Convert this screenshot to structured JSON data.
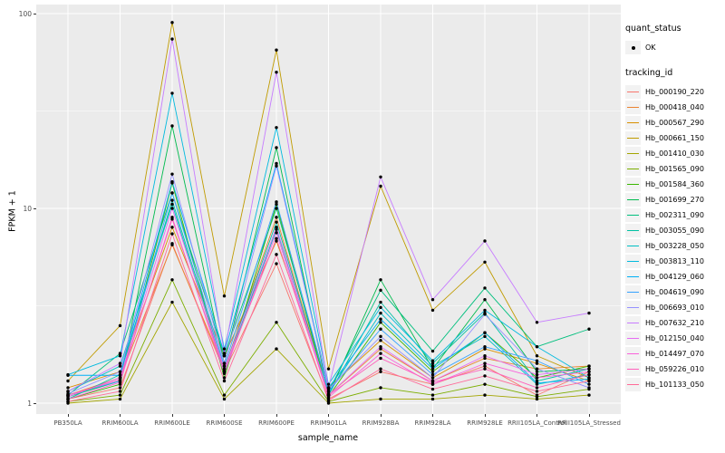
{
  "figure": {
    "legend": {
      "quant_status_title": "quant_status",
      "ok_label": "OK",
      "tracking_id_title": "tracking_id"
    }
  },
  "chart_data": {
    "type": "line",
    "title": "",
    "xlabel": "sample_name",
    "ylabel": "FPKM + 1",
    "yscale": "log",
    "ylim": [
      1,
      100
    ],
    "y_major_ticks": [
      1,
      10,
      100
    ],
    "y_minor_gridlines": [
      3.162,
      31.62
    ],
    "grid": true,
    "legend_position": "right",
    "panel_bg": "#EBEBEB",
    "gridline_color": "#FFFFFF",
    "point_color": "#000000",
    "quant_status_value": "OK",
    "categories": [
      "PB350LA",
      "RRIM600LA",
      "RRIM600LE",
      "RRIM600SE",
      "RRIM600PE",
      "RRIM901LA",
      "RRIM928BA",
      "RRIM928LA",
      "RRIM928LE",
      "RRII105LA_Control",
      "RRII105LA_Stressed"
    ],
    "series": [
      {
        "name": "Hb_000190_220",
        "color": "#F8766D",
        "values": [
          1.05,
          1.2,
          6.6,
          1.45,
          5.2,
          1.05,
          1.45,
          1.25,
          1.55,
          1.1,
          1.45
        ]
      },
      {
        "name": "Hb_000418_040",
        "color": "#EA8331",
        "values": [
          1.1,
          1.35,
          6.5,
          1.5,
          9.0,
          1.1,
          1.9,
          1.3,
          1.7,
          1.5,
          1.55
        ]
      },
      {
        "name": "Hb_000567_290",
        "color": "#D89000",
        "values": [
          1.2,
          1.45,
          8.0,
          1.75,
          6.8,
          1.2,
          2.1,
          1.35,
          1.9,
          1.6,
          1.3
        ]
      },
      {
        "name": "Hb_000661_150",
        "color": "#C09B00",
        "values": [
          1.3,
          2.5,
          90.0,
          3.55,
          65.0,
          1.5,
          13.0,
          3.0,
          5.3,
          1.75,
          1.35
        ]
      },
      {
        "name": "Hb_001410_030",
        "color": "#A3A500",
        "values": [
          1.0,
          1.05,
          3.3,
          1.05,
          1.9,
          1.0,
          1.05,
          1.05,
          1.1,
          1.05,
          1.1
        ]
      },
      {
        "name": "Hb_001565_090",
        "color": "#7CAE00",
        "values": [
          1.02,
          1.1,
          4.3,
          1.1,
          2.6,
          1.02,
          1.2,
          1.1,
          1.25,
          1.08,
          1.18
        ]
      },
      {
        "name": "Hb_001584_360",
        "color": "#39B600",
        "values": [
          1.05,
          1.25,
          13.5,
          1.35,
          10.5,
          1.08,
          2.6,
          1.45,
          2.3,
          1.35,
          1.55
        ]
      },
      {
        "name": "Hb_001699_270",
        "color": "#00BB4E",
        "values": [
          1.08,
          1.3,
          26.5,
          1.6,
          20.5,
          1.1,
          4.3,
          1.5,
          3.4,
          1.45,
          1.5
        ]
      },
      {
        "name": "Hb_002311_090",
        "color": "#00BF7D",
        "values": [
          1.1,
          1.8,
          12.0,
          1.75,
          10.0,
          1.15,
          3.8,
          1.85,
          3.9,
          1.95,
          2.4
        ]
      },
      {
        "name": "Hb_003055_090",
        "color": "#00C1A3",
        "values": [
          1.05,
          1.4,
          11.0,
          1.5,
          8.5,
          1.1,
          3.3,
          1.6,
          2.9,
          1.3,
          1.5
        ]
      },
      {
        "name": "Hb_003228_050",
        "color": "#00BFC4",
        "values": [
          1.15,
          1.55,
          10.5,
          1.45,
          7.8,
          1.12,
          2.9,
          1.55,
          2.2,
          1.25,
          1.4
        ]
      },
      {
        "name": "Hb_003813_110",
        "color": "#00BADE",
        "values": [
          1.4,
          1.75,
          39.0,
          1.9,
          26.0,
          1.25,
          3.1,
          1.65,
          3.0,
          1.95,
          1.35
        ]
      },
      {
        "name": "Hb_004129_060",
        "color": "#00B0F6",
        "values": [
          1.39,
          1.39,
          13.7,
          1.8,
          17.0,
          1.2,
          2.7,
          1.5,
          2.3,
          1.27,
          1.33
        ]
      },
      {
        "name": "Hb_004619_090",
        "color": "#35A2FF",
        "values": [
          1.1,
          1.3,
          12.0,
          1.55,
          10.8,
          1.15,
          2.4,
          1.4,
          1.95,
          1.65,
          1.25
        ]
      },
      {
        "name": "Hb_006693_010",
        "color": "#9590FF",
        "values": [
          1.12,
          1.45,
          15.0,
          1.6,
          16.5,
          1.18,
          2.2,
          1.35,
          2.86,
          1.5,
          1.2
        ]
      },
      {
        "name": "Hb_007632_210",
        "color": "#C77CFF",
        "values": [
          1.15,
          1.6,
          74.0,
          1.8,
          50.0,
          1.2,
          14.5,
          3.4,
          6.8,
          2.6,
          2.9
        ]
      },
      {
        "name": "Hb_012150_040",
        "color": "#E76BF3",
        "values": [
          1.08,
          1.35,
          10.0,
          1.5,
          8.0,
          1.1,
          1.95,
          1.3,
          1.75,
          1.4,
          1.5
        ]
      },
      {
        "name": "Hb_014497_070",
        "color": "#FA62DB",
        "values": [
          1.05,
          1.28,
          9.0,
          1.42,
          7.5,
          1.07,
          1.8,
          1.25,
          1.6,
          1.35,
          1.45
        ]
      },
      {
        "name": "Hb_059226_010",
        "color": "#FF62BC",
        "values": [
          1.1,
          1.32,
          8.8,
          1.48,
          7.0,
          1.1,
          1.7,
          1.28,
          1.5,
          1.2,
          1.4
        ]
      },
      {
        "name": "Hb_101133_050",
        "color": "#FF6A98",
        "values": [
          1.02,
          1.15,
          7.4,
          1.3,
          5.8,
          1.03,
          1.5,
          1.18,
          1.38,
          1.15,
          1.3
        ]
      }
    ]
  }
}
